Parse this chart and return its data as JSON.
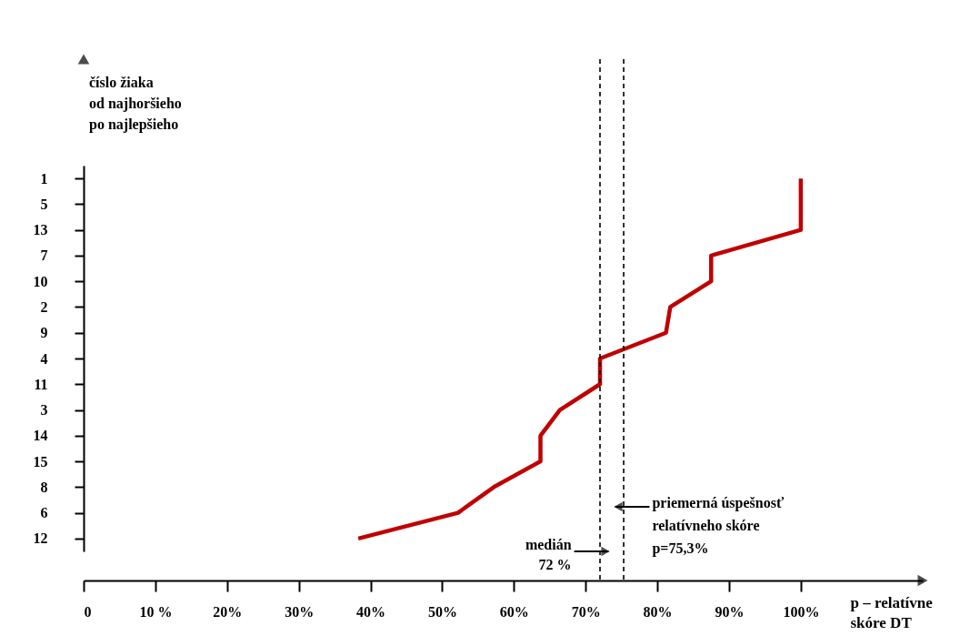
{
  "chart_data": {
    "type": "line",
    "orientation": "horizontal",
    "xlabel": "p – relatívne\nskóre DT",
    "annotations": [
      "číslo žiaka\nod najhoršieho\npo najlepšieho"
    ],
    "categories": [
      "1",
      "5",
      "13",
      "7",
      "10",
      "2",
      "9",
      "4",
      "11",
      "3",
      "14",
      "15",
      "8",
      "6",
      "12"
    ],
    "series": [
      {
        "color": "#c00000",
        "values": [
          100,
          100,
          100,
          87.5,
          87.5,
          81.8,
          81.2,
          72,
          72,
          66.4,
          63.7,
          63.7,
          57.2,
          52.2,
          38.3
        ]
      }
    ],
    "xlim": [
      0,
      117
    ],
    "xticks": [
      0,
      {
        "value": 10,
        "label": "10 %"
      },
      {
        "value": 20,
        "label": "20%"
      },
      {
        "value": 30,
        "label": "30%"
      },
      {
        "value": 40,
        "label": "40%"
      },
      {
        "value": 50,
        "label": "50%"
      },
      {
        "value": 60,
        "label": "60%"
      },
      {
        "value": 70,
        "label": "70%"
      },
      {
        "value": 80,
        "label": "80%"
      },
      {
        "value": 90,
        "label": "90%"
      },
      {
        "value": 100,
        "label": "100%"
      }
    ],
    "ref_lines": [
      {
        "axis": "x",
        "value": 72,
        "label": "medián\n72 %",
        "line_style": "dashed",
        "color": "#000000"
      },
      {
        "axis": "x",
        "value": 75.3,
        "label": "priemerná úspešnosť\nrelatívneho skóre\np=75,3%",
        "line_style": "dashed",
        "color": "#000000"
      }
    ]
  }
}
